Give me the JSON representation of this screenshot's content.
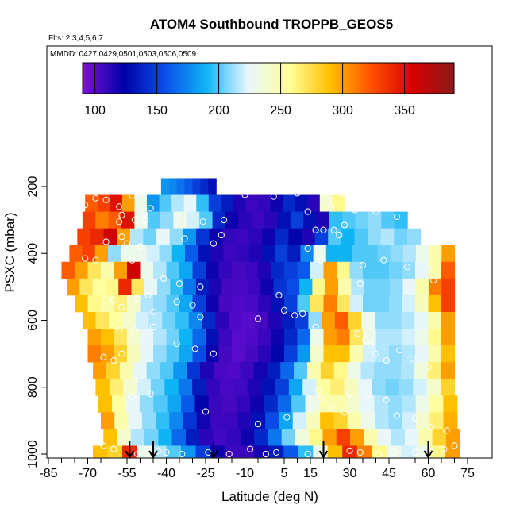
{
  "chart_data": {
    "type": "heatmap",
    "title": "ATOM4 Southbound TROPPB_GEOS5",
    "subtitle_flights": "Flts: 2,3,4,5,6,7",
    "subtitle_dates": "MMDD: 0427,0429,0501,0503,0506,0509",
    "xlabel": "Latitude (deg N)",
    "ylabel": "PSXC (mbar)",
    "xlim": [
      -87,
      76
    ],
    "ylim": [
      1010,
      10
    ],
    "y_reversed": true,
    "x_ticks": [
      -85,
      -70,
      -55,
      -40,
      -25,
      -10,
      5,
      15,
      30,
      45,
      60,
      75
    ],
    "x_tick_labels": [
      "-85",
      "-70",
      "-55",
      "-40",
      "-25",
      "-10",
      "5",
      "15",
      "30",
      "45",
      "60",
      "75"
    ],
    "y_ticks": [
      200,
      400,
      600,
      800,
      1000
    ],
    "y_tick_labels": [
      "200",
      "400",
      "600",
      "800",
      "1000"
    ],
    "colorbar": {
      "range": [
        90,
        390
      ],
      "ticks": [
        100,
        150,
        200,
        250,
        300,
        350
      ],
      "tick_labels": [
        "100",
        "150",
        "200",
        "250",
        "300",
        "350"
      ],
      "placement": "top-inside",
      "colors": [
        "#7d10d8",
        "#0000a8",
        "#0a4fe8",
        "#0fb4f5",
        "#e8f7ff",
        "#ffff9a",
        "#ffc000",
        "#ff5000",
        "#d80000",
        "#8a1a1a"
      ]
    },
    "rows": [
      {
        "p": 200,
        "lat_min": -42,
        "lat_max": -21,
        "values": [
          180,
          175,
          168,
          160,
          150,
          140,
          130
        ]
      },
      {
        "p": 250,
        "lat_min": -71,
        "lat_max": 28,
        "values": [
          320,
          330,
          350,
          300,
          230,
          180,
          200,
          215,
          225,
          195,
          150,
          135,
          115,
          108,
          110,
          120,
          140,
          130,
          112,
          240,
          260
        ]
      },
      {
        "p": 300,
        "lat_min": -72,
        "lat_max": 52,
        "values": [
          330,
          310,
          320,
          350,
          230,
          200,
          210,
          230,
          220,
          200,
          140,
          120,
          112,
          108,
          112,
          130,
          150,
          130,
          115,
          195,
          200,
          205,
          210,
          200,
          195
        ]
      },
      {
        "p": 350,
        "lat_min": -74,
        "lat_max": 57,
        "values": [
          330,
          340,
          360,
          300,
          215,
          205,
          225,
          210,
          180,
          145,
          120,
          110,
          108,
          112,
          120,
          140,
          125,
          115,
          150,
          200,
          190,
          200,
          210,
          215,
          205,
          210
        ]
      },
      {
        "p": 400,
        "lat_min": -77,
        "lat_max": 70,
        "values": [
          320,
          330,
          300,
          210,
          230,
          230,
          220,
          210,
          190,
          160,
          130,
          115,
          108,
          110,
          115,
          130,
          150,
          135,
          175,
          230,
          190,
          190,
          200,
          200,
          205,
          210,
          215,
          230,
          250,
          300
        ]
      },
      {
        "p": 450,
        "lat_min": -80,
        "lat_max": 70,
        "values": [
          320,
          300,
          270,
          250,
          300,
          360,
          230,
          215,
          200,
          185,
          150,
          120,
          110,
          105,
          108,
          115,
          140,
          150,
          160,
          220,
          300,
          260,
          210,
          200,
          200,
          205,
          210,
          225,
          250,
          320
        ]
      },
      {
        "p": 500,
        "lat_min": -78,
        "lat_max": 70,
        "values": [
          300,
          270,
          255,
          260,
          340,
          270,
          225,
          210,
          195,
          170,
          135,
          115,
          105,
          104,
          108,
          120,
          145,
          155,
          190,
          260,
          300,
          250,
          215,
          205,
          205,
          210,
          225,
          250,
          310,
          330
        ]
      },
      {
        "p": 550,
        "lat_min": -75,
        "lat_max": 70,
        "values": [
          290,
          260,
          250,
          265,
          240,
          215,
          210,
          200,
          185,
          150,
          120,
          105,
          102,
          104,
          112,
          130,
          150,
          200,
          270,
          310,
          270,
          220,
          205,
          205,
          210,
          220,
          245,
          290,
          330
        ]
      },
      {
        "p": 600,
        "lat_min": -72,
        "lat_max": 70,
        "values": [
          290,
          270,
          255,
          240,
          220,
          215,
          205,
          195,
          175,
          140,
          112,
          102,
          100,
          105,
          115,
          135,
          150,
          210,
          300,
          320,
          280,
          230,
          210,
          210,
          215,
          225,
          250,
          300
        ]
      },
      {
        "p": 650,
        "lat_min": -70,
        "lat_max": 70,
        "values": [
          300,
          290,
          270,
          240,
          225,
          215,
          205,
          190,
          165,
          130,
          108,
          100,
          102,
          108,
          120,
          140,
          165,
          230,
          300,
          310,
          270,
          230,
          215,
          215,
          220,
          230,
          260,
          300
        ]
      },
      {
        "p": 700,
        "lat_min": -70,
        "lat_max": 70,
        "values": [
          310,
          300,
          280,
          245,
          225,
          210,
          200,
          185,
          155,
          120,
          105,
          100,
          105,
          112,
          125,
          150,
          180,
          240,
          290,
          290,
          250,
          220,
          215,
          210,
          215,
          225,
          250,
          290
        ]
      },
      {
        "p": 750,
        "lat_min": -68,
        "lat_max": 70,
        "values": [
          300,
          280,
          250,
          225,
          210,
          200,
          180,
          145,
          115,
          104,
          102,
          108,
          118,
          135,
          165,
          200,
          250,
          280,
          260,
          230,
          215,
          210,
          210,
          215,
          235,
          265,
          300
        ]
      },
      {
        "p": 800,
        "lat_min": -67,
        "lat_max": 70,
        "values": [
          290,
          265,
          240,
          220,
          205,
          190,
          170,
          135,
          110,
          104,
          106,
          115,
          130,
          150,
          185,
          220,
          255,
          265,
          245,
          225,
          210,
          205,
          210,
          220,
          240,
          280
        ]
      },
      {
        "p": 850,
        "lat_min": -66,
        "lat_max": 71,
        "values": [
          290,
          255,
          225,
          210,
          200,
          185,
          160,
          125,
          108,
          105,
          110,
          120,
          140,
          165,
          200,
          230,
          250,
          250,
          240,
          225,
          215,
          210,
          215,
          230,
          255,
          290
        ]
      },
      {
        "p": 900,
        "lat_min": -65,
        "lat_max": 71,
        "values": [
          300,
          250,
          225,
          210,
          195,
          175,
          145,
          118,
          108,
          108,
          115,
          130,
          155,
          185,
          220,
          245,
          290,
          280,
          250,
          230,
          215,
          210,
          220,
          240,
          265,
          295
        ]
      },
      {
        "p": 950,
        "lat_min": -64,
        "lat_max": 72,
        "values": [
          290,
          240,
          215,
          205,
          190,
          165,
          135,
          112,
          106,
          110,
          120,
          140,
          170,
          205,
          235,
          260,
          300,
          330,
          300,
          250,
          225,
          215,
          225,
          250,
          280,
          300
        ]
      },
      {
        "p": 1000,
        "lat_min": -68,
        "lat_max": 72,
        "values": [
          290,
          280,
          340,
          230,
          215,
          200,
          180,
          150,
          120,
          108,
          108,
          118,
          135,
          160,
          195,
          230,
          290,
          340,
          310,
          260,
          230,
          220,
          230,
          260,
          300
        ]
      }
    ],
    "points": [
      [
        -57,
        215
      ],
      [
        -53,
        227
      ],
      [
        -63,
        240
      ],
      [
        -67,
        235
      ],
      [
        -71,
        255
      ],
      [
        -58,
        260
      ],
      [
        -46,
        265
      ],
      [
        -57,
        285
      ],
      [
        -49,
        285
      ],
      [
        -36,
        290
      ],
      [
        -26,
        305
      ],
      [
        -18,
        300
      ],
      [
        -52,
        300
      ],
      [
        -48,
        300
      ],
      [
        -58,
        305
      ],
      [
        -33,
        355
      ],
      [
        -22,
        370
      ],
      [
        -19,
        345
      ],
      [
        -57,
        350
      ],
      [
        -63,
        365
      ],
      [
        -55,
        370
      ],
      [
        -50,
        380
      ],
      [
        -67,
        420
      ],
      [
        -71,
        415
      ],
      [
        -53,
        420
      ],
      [
        -41,
        475
      ],
      [
        -35,
        490
      ],
      [
        -27,
        500
      ],
      [
        -51,
        535
      ],
      [
        -47,
        525
      ],
      [
        -36,
        545
      ],
      [
        -30,
        555
      ],
      [
        -57,
        560
      ],
      [
        -60,
        540
      ],
      [
        -45,
        575
      ],
      [
        -27,
        590
      ],
      [
        -5,
        595
      ],
      [
        -22,
        700
      ],
      [
        -29,
        685
      ],
      [
        -36,
        670
      ],
      [
        -58,
        630
      ],
      [
        -52,
        630
      ],
      [
        -45,
        620
      ],
      [
        -64,
        710
      ],
      [
        -57,
        700
      ],
      [
        -60,
        720
      ],
      [
        -10,
        225
      ],
      [
        1,
        230
      ],
      [
        10,
        220
      ],
      [
        14,
        275
      ],
      [
        27,
        222
      ],
      [
        22,
        240
      ],
      [
        23,
        262
      ],
      [
        32,
        270
      ],
      [
        40,
        275
      ],
      [
        48,
        290
      ],
      [
        54,
        290
      ],
      [
        60,
        295
      ],
      [
        62,
        300
      ],
      [
        17,
        330
      ],
      [
        20,
        330
      ],
      [
        24,
        330
      ],
      [
        26,
        345
      ],
      [
        28,
        315
      ],
      [
        14,
        385
      ],
      [
        19,
        420
      ],
      [
        35,
        435
      ],
      [
        43,
        420
      ],
      [
        52,
        440
      ],
      [
        60,
        445
      ],
      [
        62,
        480
      ],
      [
        34,
        490
      ],
      [
        3,
        525
      ],
      [
        5,
        570
      ],
      [
        9,
        585
      ],
      [
        12,
        580
      ],
      [
        17,
        620
      ],
      [
        33,
        640
      ],
      [
        36,
        660
      ],
      [
        38,
        675
      ],
      [
        40,
        700
      ],
      [
        44,
        720
      ],
      [
        49,
        690
      ],
      [
        54,
        715
      ],
      [
        60,
        740
      ],
      [
        18,
        810
      ],
      [
        19,
        835
      ],
      [
        23,
        862
      ],
      [
        28,
        875
      ],
      [
        30,
        820
      ],
      [
        37,
        820
      ],
      [
        44,
        838
      ],
      [
        48,
        885
      ],
      [
        55,
        893
      ],
      [
        61,
        920
      ],
      [
        67,
        930
      ],
      [
        -52,
        780
      ],
      [
        -46,
        820
      ],
      [
        -53,
        828
      ],
      [
        -25,
        873
      ],
      [
        -5,
        910
      ],
      [
        6,
        890
      ],
      [
        14,
        1000
      ],
      [
        2,
        995
      ],
      [
        -2,
        1000
      ],
      [
        -8,
        985
      ],
      [
        -16,
        1000
      ],
      [
        -24,
        995
      ],
      [
        -34,
        1000
      ],
      [
        -40,
        995
      ],
      [
        -43,
        990
      ],
      [
        -47,
        985
      ],
      [
        -51,
        1000
      ],
      [
        -60,
        985
      ],
      [
        -64,
        975
      ],
      [
        -67,
        965
      ],
      [
        -69,
        950
      ],
      [
        30,
        990
      ],
      [
        34,
        995
      ],
      [
        41,
        1000
      ],
      [
        47,
        995
      ],
      [
        55,
        995
      ],
      [
        61,
        990
      ],
      [
        66,
        985
      ],
      [
        70,
        975
      ]
    ],
    "arrows_lat": [
      -54,
      -45,
      -22,
      20,
      60
    ]
  }
}
